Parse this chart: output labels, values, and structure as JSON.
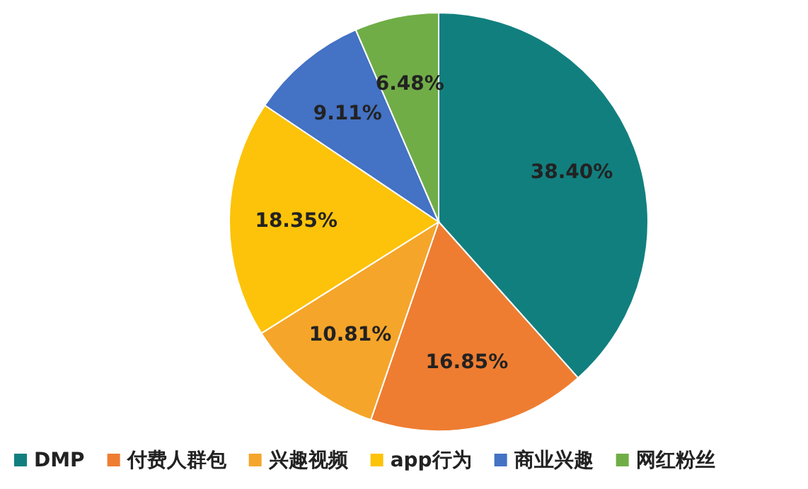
{
  "chart_data": {
    "type": "pie",
    "categories": [
      "DMP",
      "付费人群包",
      "兴趣视频",
      "app行为",
      "商业兴趣",
      "网红粉丝"
    ],
    "values": [
      38.4,
      16.85,
      10.81,
      18.35,
      9.11,
      6.48
    ],
    "value_labels": [
      "38.40%",
      "16.85%",
      "10.81%",
      "18.35%",
      "9.11%",
      "6.48%"
    ],
    "colors": [
      "#127f7f",
      "#ee7d31",
      "#f5a52a",
      "#fcc30a",
      "#4472c4",
      "#70ad47"
    ],
    "legend": "bottom"
  }
}
